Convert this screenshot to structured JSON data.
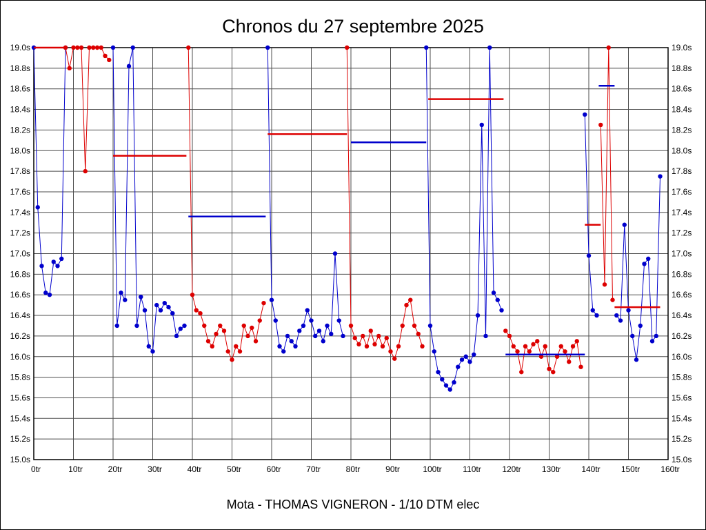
{
  "chart_data": {
    "type": "scatter",
    "title": "Chronos du 27 septembre 2025",
    "caption": "Mota - THOMAS VIGNERON - 1/10 DTM elec",
    "x_min": 0,
    "x_max": 160,
    "x_step": 10,
    "x_unit": "tr",
    "y_min": 15.0,
    "y_max": 19.0,
    "y_step": 0.2,
    "y_unit": "s",
    "grid": true,
    "legend": "none",
    "note": "Lap times per run (points, clipped at 19.0s); thick horizontal segments are per-run average lap times",
    "colors": {
      "blue": "#0000cc",
      "red": "#dd0000",
      "grid": "#4d4d4d",
      "axis": "#000000",
      "background": "#ffffff"
    },
    "series": [
      {
        "name": "run-1",
        "color": "blue",
        "start_lap": 0,
        "values": [
          19.0,
          17.45,
          16.88,
          16.62,
          16.6,
          16.92,
          16.88,
          16.95,
          19.0
        ]
      },
      {
        "name": "run-2",
        "color": "red",
        "start_lap": 8,
        "values": [
          19.0,
          18.8,
          19.0,
          19.0,
          19.0,
          17.8,
          19.0,
          19.0,
          19.0,
          19.0,
          18.92,
          18.88
        ]
      },
      {
        "name": "run-3",
        "color": "blue",
        "start_lap": 20,
        "values": [
          19.0,
          16.3,
          16.62,
          16.55,
          18.82,
          19.0,
          16.3,
          16.58,
          16.45,
          16.1,
          16.05,
          16.5,
          16.45,
          16.52,
          16.48,
          16.42,
          16.2,
          16.27,
          16.3
        ]
      },
      {
        "name": "run-4",
        "color": "red",
        "start_lap": 39,
        "values": [
          19.0,
          16.6,
          16.45,
          16.42,
          16.3,
          16.15,
          16.1,
          16.22,
          16.3,
          16.25,
          16.05,
          15.97,
          16.1,
          16.05,
          16.3,
          16.2,
          16.28,
          16.15,
          16.35,
          16.52
        ]
      },
      {
        "name": "run-5",
        "color": "blue",
        "start_lap": 59,
        "values": [
          19.0,
          16.55,
          16.35,
          16.1,
          16.05,
          16.2,
          16.15,
          16.1,
          16.25,
          16.3,
          16.45,
          16.35,
          16.2,
          16.25,
          16.15,
          16.3,
          16.22,
          17.0,
          16.35,
          16.2
        ]
      },
      {
        "name": "run-6",
        "color": "red",
        "start_lap": 79,
        "values": [
          19.0,
          16.3,
          16.18,
          16.12,
          16.2,
          16.1,
          16.25,
          16.12,
          16.2,
          16.1,
          16.18,
          16.05,
          15.98,
          16.1,
          16.3,
          16.5,
          16.55,
          16.3,
          16.22,
          16.1
        ]
      },
      {
        "name": "run-7",
        "color": "blue",
        "start_lap": 99,
        "values": [
          19.0,
          16.3,
          16.05,
          15.85,
          15.78,
          15.72,
          15.68,
          15.75,
          15.9,
          15.97,
          16.0,
          15.95,
          16.02,
          16.4,
          18.25,
          16.2,
          19.0,
          16.62,
          16.55,
          16.45
        ]
      },
      {
        "name": "run-8",
        "color": "red",
        "start_lap": 119,
        "values": [
          16.25,
          16.2,
          16.1,
          16.05,
          15.85,
          16.1,
          16.05,
          16.12,
          16.15,
          16.0,
          16.1,
          15.88,
          15.85,
          16.0,
          16.1,
          16.05,
          15.95,
          16.1,
          16.15,
          15.9
        ]
      },
      {
        "name": "run-9",
        "color": "blue",
        "start_lap": 139,
        "values": [
          18.35,
          16.98,
          16.45,
          16.4
        ]
      },
      {
        "name": "run-10",
        "color": "red",
        "start_lap": 143,
        "values": [
          18.25,
          16.7,
          19.0,
          16.55
        ]
      },
      {
        "name": "run-11",
        "color": "blue",
        "start_lap": 147,
        "values": [
          16.4,
          16.35,
          17.28,
          16.45,
          16.2,
          15.97,
          16.3,
          16.9,
          16.95,
          16.15,
          16.2,
          17.75
        ]
      }
    ],
    "segments": [
      {
        "color": "red",
        "x1": 0,
        "x2": 8.5,
        "y": 19.0
      },
      {
        "color": "red",
        "x1": 20,
        "x2": 38.5,
        "y": 17.95
      },
      {
        "color": "blue",
        "x1": 39,
        "x2": 58.5,
        "y": 17.36
      },
      {
        "color": "red",
        "x1": 59,
        "x2": 79,
        "y": 18.16
      },
      {
        "color": "blue",
        "x1": 80,
        "x2": 99,
        "y": 18.08
      },
      {
        "color": "red",
        "x1": 99.5,
        "x2": 118.5,
        "y": 18.5
      },
      {
        "color": "blue",
        "x1": 119,
        "x2": 139,
        "y": 16.02
      },
      {
        "color": "red",
        "x1": 139,
        "x2": 143,
        "y": 17.28
      },
      {
        "color": "blue",
        "x1": 142.5,
        "x2": 146.5,
        "y": 18.63
      },
      {
        "color": "red",
        "x1": 146.5,
        "x2": 158,
        "y": 16.48
      }
    ]
  }
}
